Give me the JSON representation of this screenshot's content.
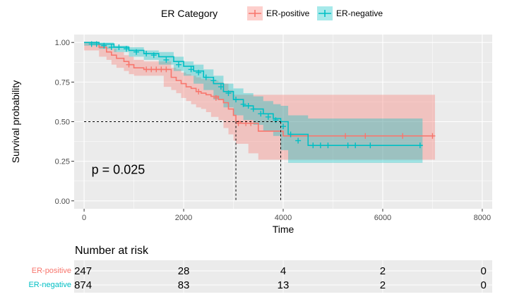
{
  "chart_data": {
    "type": "line",
    "title": "",
    "xlabel": "Time",
    "ylabel": "Survival probability",
    "xlim": [
      -200,
      8200
    ],
    "ylim": [
      -0.05,
      1.05
    ],
    "x_ticks": [
      0,
      2000,
      4000,
      6000,
      8000
    ],
    "y_ticks": [
      0.0,
      0.25,
      0.5,
      0.75,
      1.0
    ],
    "y_tick_labels": [
      "0.00",
      "0.25",
      "0.50",
      "0.75",
      "1.00"
    ],
    "legend": {
      "title": "ER Category",
      "placement": "top",
      "entries": [
        "ER-positive",
        "ER-negative"
      ]
    },
    "p_value_text": "p = 0.025",
    "median_lines": [
      3050,
      3950
    ],
    "colors": {
      "ER-positive": "#f8766d",
      "ER-negative": "#00bfc4",
      "panel": "#ebebeb",
      "grid": "#ffffff"
    },
    "series": [
      {
        "name": "ER-positive",
        "color": "#f8766d",
        "x": [
          0,
          300,
          450,
          550,
          650,
          800,
          900,
          1000,
          1200,
          1600,
          1750,
          1850,
          1950,
          2050,
          2150,
          2250,
          2350,
          2450,
          2550,
          2700,
          2800,
          2900,
          3000,
          3050,
          3150,
          3300,
          3500,
          4000,
          7050
        ],
        "y": [
          1.0,
          0.97,
          0.94,
          0.92,
          0.9,
          0.88,
          0.86,
          0.84,
          0.83,
          0.83,
          0.78,
          0.76,
          0.74,
          0.72,
          0.71,
          0.69,
          0.68,
          0.67,
          0.66,
          0.64,
          0.62,
          0.58,
          0.54,
          0.5,
          0.49,
          0.49,
          0.44,
          0.41,
          0.41
        ],
        "lower": [
          1.0,
          0.95,
          0.91,
          0.89,
          0.86,
          0.84,
          0.82,
          0.8,
          0.79,
          0.79,
          0.72,
          0.7,
          0.68,
          0.65,
          0.63,
          0.61,
          0.59,
          0.58,
          0.56,
          0.53,
          0.51,
          0.46,
          0.42,
          0.38,
          0.36,
          0.36,
          0.3,
          0.26,
          0.26
        ],
        "upper": [
          1.0,
          0.99,
          0.97,
          0.96,
          0.94,
          0.92,
          0.91,
          0.89,
          0.88,
          0.88,
          0.84,
          0.83,
          0.81,
          0.8,
          0.79,
          0.78,
          0.77,
          0.77,
          0.76,
          0.75,
          0.74,
          0.7,
          0.67,
          0.67,
          0.67,
          0.67,
          0.67,
          0.67,
          0.67
        ],
        "censor_x": [
          900,
          1250,
          1350,
          1450,
          1550,
          1650,
          2300,
          2650,
          3100,
          3250,
          3350,
          5250,
          5650,
          6400,
          7000
        ],
        "censor_y": [
          0.86,
          0.83,
          0.83,
          0.83,
          0.83,
          0.83,
          0.69,
          0.65,
          0.49,
          0.49,
          0.49,
          0.41,
          0.41,
          0.41,
          0.41
        ]
      },
      {
        "name": "ER-negative",
        "color": "#00bfc4",
        "x": [
          0,
          300,
          600,
          900,
          1200,
          1500,
          1800,
          2000,
          2200,
          2400,
          2600,
          2800,
          3000,
          3200,
          3400,
          3600,
          3800,
          3950,
          4100,
          4500,
          6800
        ],
        "y": [
          1.0,
          0.99,
          0.97,
          0.95,
          0.93,
          0.91,
          0.88,
          0.85,
          0.82,
          0.78,
          0.74,
          0.69,
          0.64,
          0.6,
          0.58,
          0.55,
          0.52,
          0.5,
          0.42,
          0.35,
          0.35
        ],
        "lower": [
          1.0,
          0.98,
          0.96,
          0.94,
          0.91,
          0.89,
          0.86,
          0.82,
          0.79,
          0.74,
          0.7,
          0.64,
          0.59,
          0.54,
          0.51,
          0.48,
          0.44,
          0.41,
          0.32,
          0.24,
          0.24
        ],
        "upper": [
          1.0,
          1.0,
          0.98,
          0.97,
          0.95,
          0.94,
          0.91,
          0.88,
          0.86,
          0.83,
          0.79,
          0.74,
          0.71,
          0.68,
          0.66,
          0.63,
          0.61,
          0.6,
          0.54,
          0.52,
          0.52
        ],
        "censor_x": [
          150,
          250,
          400,
          550,
          700,
          850,
          1050,
          1250,
          1400,
          1650,
          1900,
          2150,
          2300,
          2450,
          2600,
          2750,
          2900,
          3050,
          3200,
          3300,
          3400,
          3550,
          3700,
          3850,
          4000,
          4150,
          4300,
          4600,
          4750,
          4900,
          5300,
          5450,
          5750,
          6750
        ],
        "censor_y": [
          0.99,
          0.99,
          0.98,
          0.97,
          0.97,
          0.96,
          0.94,
          0.93,
          0.92,
          0.89,
          0.86,
          0.83,
          0.81,
          0.78,
          0.76,
          0.72,
          0.68,
          0.64,
          0.61,
          0.6,
          0.58,
          0.55,
          0.53,
          0.51,
          0.47,
          0.42,
          0.38,
          0.35,
          0.35,
          0.35,
          0.35,
          0.35,
          0.35,
          0.35
        ]
      }
    ]
  },
  "risk_table": {
    "title": "Number at risk",
    "times": [
      0,
      2000,
      4000,
      6000,
      8000
    ],
    "rows": [
      {
        "name": "ER-positive",
        "color": "#f8766d",
        "values": [
          "247",
          "28",
          "4",
          "2",
          "0"
        ]
      },
      {
        "name": "ER-negative",
        "color": "#00bfc4",
        "values": [
          "874",
          "83",
          "13",
          "2",
          "0"
        ]
      }
    ]
  }
}
